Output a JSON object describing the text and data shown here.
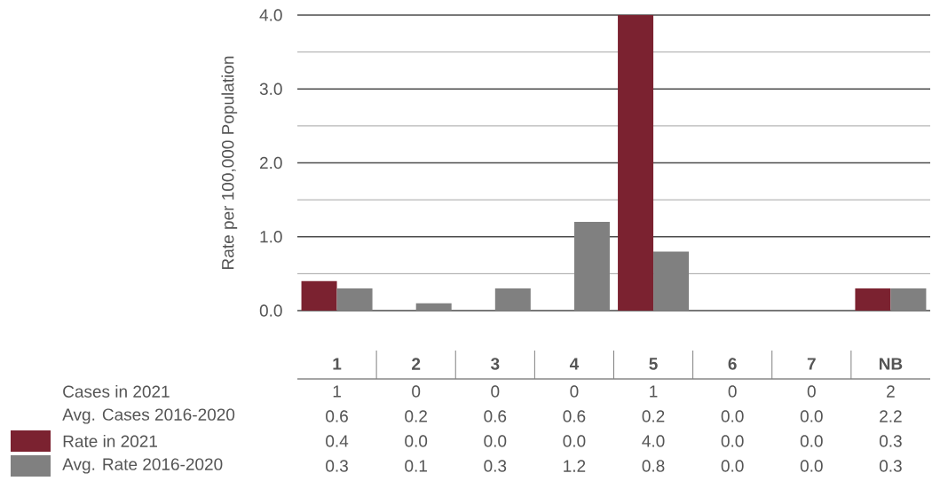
{
  "chart_data": {
    "type": "bar",
    "ylabel": "Rate per 100,000 Population",
    "categories": [
      "1",
      "2",
      "3",
      "4",
      "5",
      "6",
      "7",
      "NB"
    ],
    "series": [
      {
        "name": "Rate in 2021",
        "color": "#7b2230",
        "values": [
          0.4,
          0.0,
          0.0,
          0.0,
          4.0,
          0.0,
          0.0,
          0.3
        ],
        "value_labels": [
          "0.4",
          "0.0",
          "0.0",
          "0.0",
          "4.0",
          "0.0",
          "0.0",
          "0.3"
        ]
      },
      {
        "name": "Avg. Rate 2016-2020",
        "color": "#808080",
        "values": [
          0.3,
          0.1,
          0.3,
          1.2,
          0.8,
          0.0,
          0.0,
          0.3
        ],
        "value_labels": [
          "0.3",
          "0.1",
          "0.3",
          "1.2",
          "0.8",
          "0.0",
          "0.0",
          "0.3"
        ]
      }
    ],
    "ylim": [
      0,
      4
    ],
    "yticks": [
      {
        "value": 0,
        "label": "0.0"
      },
      {
        "value": 0.5,
        "label": null
      },
      {
        "value": 1,
        "label": "1.0"
      },
      {
        "value": 1.5,
        "label": null
      },
      {
        "value": 2,
        "label": "2.0"
      },
      {
        "value": 2.5,
        "label": null
      },
      {
        "value": 3,
        "label": "3.0"
      },
      {
        "value": 3.5,
        "label": null
      },
      {
        "value": 4,
        "label": "4.0"
      }
    ],
    "grid": "y",
    "legend": "bottom left",
    "annotations": [
      "Cases in 2021",
      "1",
      "0",
      "0",
      "0",
      "1",
      "0",
      "0",
      "2",
      "Avg. Cases 2016-2020",
      "0.6",
      "0.2",
      "0.6",
      "0.6",
      "0.2",
      "0.0",
      "0.0",
      "2.2"
    ]
  }
}
